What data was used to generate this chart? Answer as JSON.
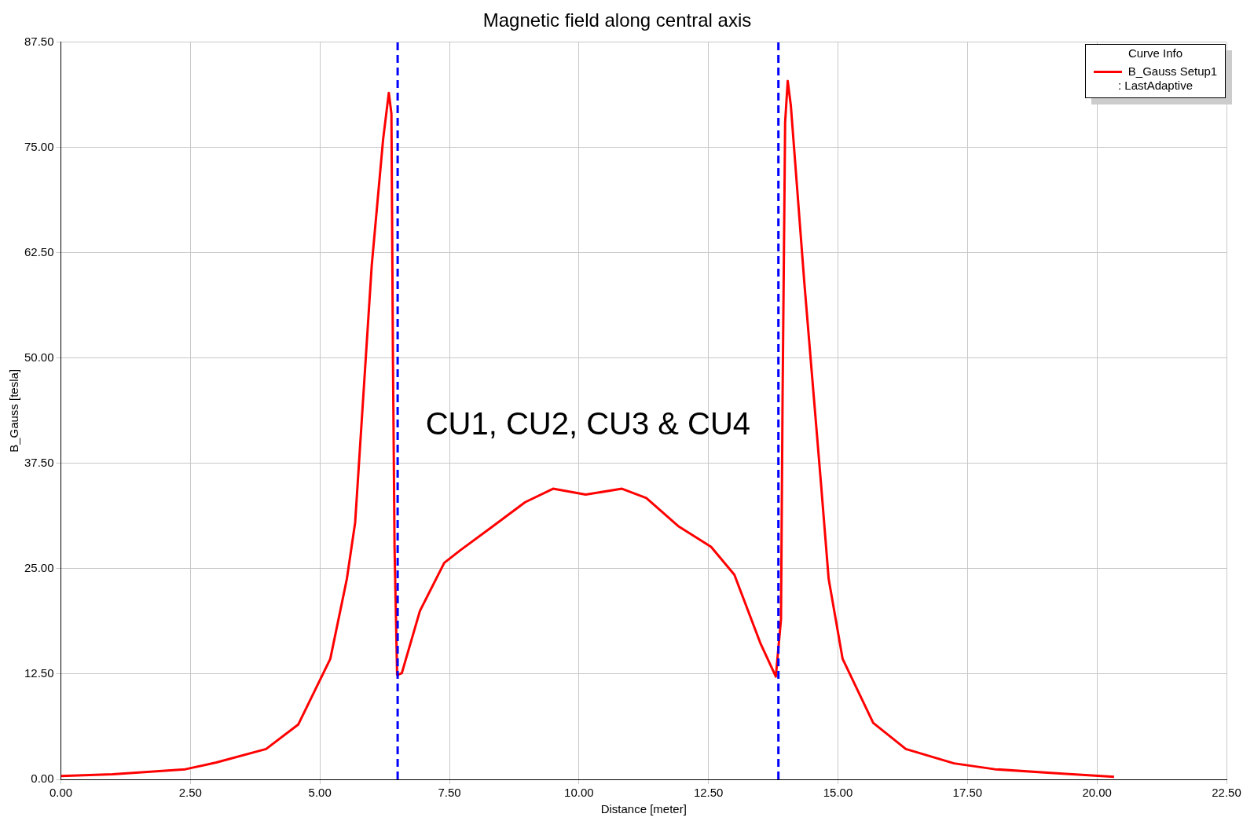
{
  "chart_data": {
    "type": "line",
    "title": "Magnetic field along central axis",
    "xlabel": "Distance [meter]",
    "ylabel": "B_Gauss [tesla]",
    "legend_title": "Curve Info",
    "xlim": [
      0,
      22.5
    ],
    "ylim": [
      0,
      87.5
    ],
    "xticks": [
      {
        "value": 0,
        "label": "0.00"
      },
      {
        "value": 2.5,
        "label": "2.50"
      },
      {
        "value": 5,
        "label": "5.00"
      },
      {
        "value": 7.5,
        "label": "7.50"
      },
      {
        "value": 10,
        "label": "10.00"
      },
      {
        "value": 12.5,
        "label": "12.50"
      },
      {
        "value": 15,
        "label": "15.00"
      },
      {
        "value": 17.5,
        "label": "17.50"
      },
      {
        "value": 20,
        "label": "20.00"
      },
      {
        "value": 22.5,
        "label": "22.50"
      }
    ],
    "yticks": [
      {
        "value": 0,
        "label": "0.00"
      },
      {
        "value": 12.5,
        "label": "12.50"
      },
      {
        "value": 25,
        "label": "25.00"
      },
      {
        "value": 37.5,
        "label": "37.50"
      },
      {
        "value": 50,
        "label": "50.00"
      },
      {
        "value": 62.5,
        "label": "62.50"
      },
      {
        "value": 75,
        "label": "75.00"
      },
      {
        "value": 87.5,
        "label": "87.50"
      }
    ],
    "grid": true,
    "legend": "top right",
    "marker": "none",
    "line_style": "solid",
    "series": [
      {
        "name": "B_Gauss Setup1 : LastAdaptive",
        "color": "#ff0000",
        "x": [
          0,
          1,
          2.4,
          3,
          3.96,
          4.58,
          5.2,
          5.52,
          5.68,
          6,
          6.22,
          6.33,
          6.38,
          6.41,
          6.44,
          6.49,
          6.58,
          6.93,
          7.4,
          7.71,
          8.33,
          8.96,
          9.5,
          10.13,
          10.83,
          11.3,
          11.93,
          12.55,
          13,
          13.5,
          13.8,
          13.9,
          13.93,
          13.98,
          14.03,
          14.09,
          14.35,
          14.67,
          14.82,
          15.09,
          15.68,
          16.31,
          17.24,
          18.03,
          19.28,
          20.33
        ],
        "values": [
          0.4,
          0.6,
          1.2,
          2,
          3.6,
          6.5,
          14.3,
          23.8,
          30.5,
          61,
          76,
          81.5,
          79,
          49.6,
          27.6,
          12.4,
          12.6,
          20,
          25.7,
          27.2,
          30,
          32.9,
          34.5,
          33.8,
          34.5,
          33.4,
          30,
          27.6,
          24.3,
          16.2,
          12.2,
          19,
          44.8,
          78,
          82.9,
          80,
          59,
          35.3,
          23.8,
          14.3,
          6.7,
          3.6,
          1.9,
          1.2,
          0.7,
          0.3
        ]
      }
    ],
    "ref_lines": [
      {
        "axis": "x",
        "value": 6.5,
        "color": "#0000ff",
        "line_style": "dashed"
      },
      {
        "axis": "x",
        "value": 13.85,
        "color": "#0000ff",
        "line_style": "dashed"
      }
    ],
    "annotations": [
      "CU1, CU2, CU3 & CU4"
    ]
  }
}
